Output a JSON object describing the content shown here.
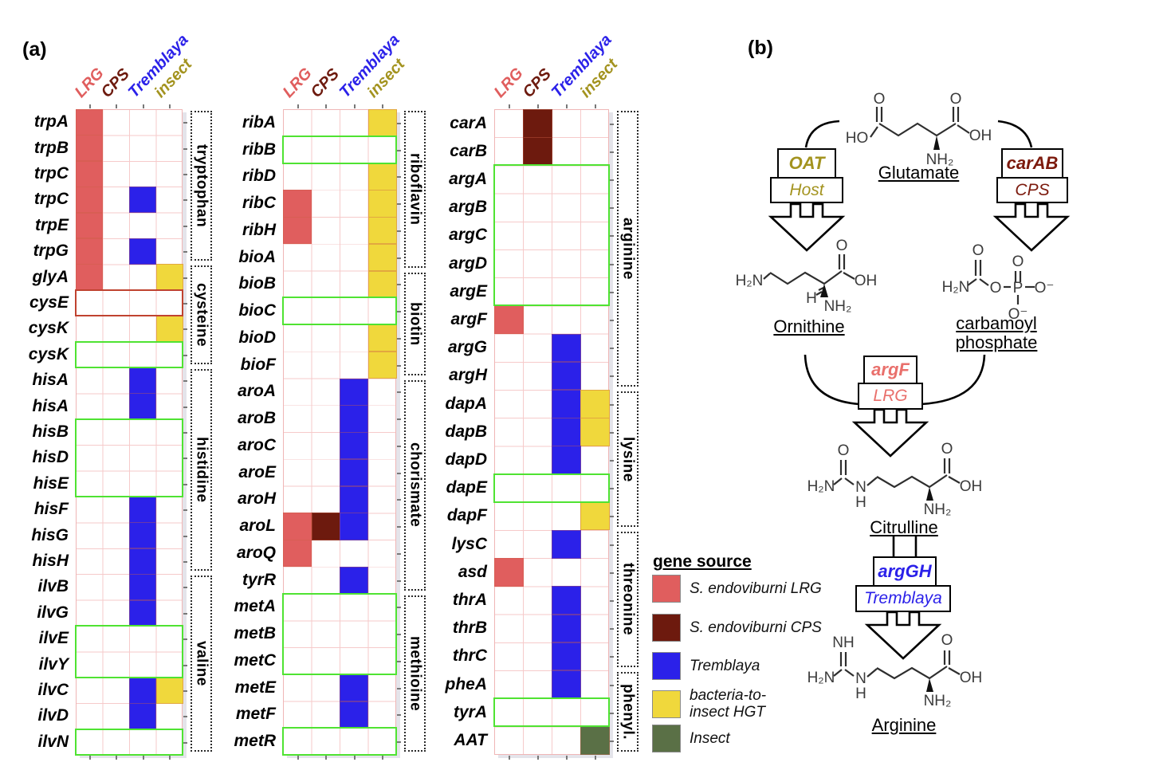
{
  "figure": {
    "panel_a_label": "(a)",
    "panel_b_label": "(b)"
  },
  "panel_a": {
    "columns": [
      {
        "label": "LRG",
        "color": "#e05e5e"
      },
      {
        "label": "CPS",
        "color": "#6d1a0e"
      },
      {
        "label": "Tremblaya",
        "color": "#2b21e9"
      },
      {
        "label": "insect",
        "color": "#a3931f"
      }
    ],
    "source_colors": {
      "LRG": "#e05e5e",
      "CPS": "#6d1a0e",
      "Tremblaya": "#2b21e9",
      "HGT": "#f0d83c",
      "Insect": "#5a7046"
    },
    "outline_colors": {
      "green": "#4fe332",
      "red": "#c04330"
    },
    "grids": [
      {
        "rows": [
          {
            "gene": "trpA",
            "cells": [
              "LRG"
            ]
          },
          {
            "gene": "trpB",
            "cells": [
              "LRG"
            ]
          },
          {
            "gene": "trpC",
            "cells": [
              "LRG"
            ]
          },
          {
            "gene": "trpC",
            "cells": [
              "LRG",
              "Tremblaya"
            ]
          },
          {
            "gene": "trpE",
            "cells": [
              "LRG"
            ]
          },
          {
            "gene": "trpG",
            "cells": [
              "LRG",
              "Tremblaya"
            ]
          },
          {
            "gene": "glyA",
            "cells": [
              "LRG",
              "HGT"
            ]
          },
          {
            "gene": "cysE",
            "cells": []
          },
          {
            "gene": "cysK",
            "cells": [
              "HGT"
            ]
          },
          {
            "gene": "cysK",
            "cells": []
          },
          {
            "gene": "hisA",
            "cells": [
              "Tremblaya"
            ]
          },
          {
            "gene": "hisA",
            "cells": [
              "Tremblaya"
            ]
          },
          {
            "gene": "hisB",
            "cells": []
          },
          {
            "gene": "hisD",
            "cells": []
          },
          {
            "gene": "hisE",
            "cells": []
          },
          {
            "gene": "hisF",
            "cells": [
              "Tremblaya"
            ]
          },
          {
            "gene": "hisG",
            "cells": [
              "Tremblaya"
            ]
          },
          {
            "gene": "hisH",
            "cells": [
              "Tremblaya"
            ]
          },
          {
            "gene": "ilvB",
            "cells": [
              "Tremblaya"
            ]
          },
          {
            "gene": "ilvG",
            "cells": [
              "Tremblaya"
            ]
          },
          {
            "gene": "ilvE",
            "cells": []
          },
          {
            "gene": "ilvY",
            "cells": []
          },
          {
            "gene": "ilvC",
            "cells": [
              "Tremblaya",
              "HGT"
            ]
          },
          {
            "gene": "ilvD",
            "cells": [
              "Tremblaya"
            ]
          },
          {
            "gene": "ilvN",
            "cells": []
          }
        ],
        "boxes": [
          {
            "color": "red",
            "start": 7,
            "end": 7
          },
          {
            "color": "green",
            "start": 9,
            "end": 9
          },
          {
            "color": "green",
            "start": 12,
            "end": 14
          },
          {
            "color": "green",
            "start": 20,
            "end": 21
          },
          {
            "color": "green",
            "start": 24,
            "end": 24
          }
        ],
        "groups": [
          {
            "label": "tryptophan",
            "start": 0,
            "end": 5
          },
          {
            "label": "cysteine",
            "start": 6,
            "end": 9
          },
          {
            "label": "histidine",
            "start": 10,
            "end": 17
          },
          {
            "label": "valine",
            "start": 18,
            "end": 24
          }
        ]
      },
      {
        "rows": [
          {
            "gene": "ribA",
            "cells": [
              "HGT"
            ]
          },
          {
            "gene": "ribB",
            "cells": []
          },
          {
            "gene": "ribD",
            "cells": [
              "HGT"
            ]
          },
          {
            "gene": "ribC",
            "cells": [
              "LRG",
              "HGT"
            ]
          },
          {
            "gene": "ribH",
            "cells": [
              "LRG",
              "HGT"
            ]
          },
          {
            "gene": "bioA",
            "cells": [
              "HGT"
            ]
          },
          {
            "gene": "bioB",
            "cells": [
              "HGT"
            ]
          },
          {
            "gene": "bioC",
            "cells": []
          },
          {
            "gene": "bioD",
            "cells": [
              "HGT"
            ]
          },
          {
            "gene": "bioF",
            "cells": [
              "HGT"
            ]
          },
          {
            "gene": "aroA",
            "cells": [
              "Tremblaya"
            ]
          },
          {
            "gene": "aroB",
            "cells": [
              "Tremblaya"
            ]
          },
          {
            "gene": "aroC",
            "cells": [
              "Tremblaya"
            ]
          },
          {
            "gene": "aroE",
            "cells": [
              "Tremblaya"
            ]
          },
          {
            "gene": "aroH",
            "cells": [
              "Tremblaya"
            ]
          },
          {
            "gene": "aroL",
            "cells": [
              "LRG",
              "CPS",
              "Tremblaya"
            ]
          },
          {
            "gene": "aroQ",
            "cells": [
              "LRG"
            ]
          },
          {
            "gene": "tyrR",
            "cells": [
              "Tremblaya"
            ]
          },
          {
            "gene": "metA",
            "cells": []
          },
          {
            "gene": "metB",
            "cells": []
          },
          {
            "gene": "metC",
            "cells": []
          },
          {
            "gene": "metE",
            "cells": [
              "Tremblaya"
            ]
          },
          {
            "gene": "metF",
            "cells": [
              "Tremblaya"
            ]
          },
          {
            "gene": "metR",
            "cells": []
          }
        ],
        "boxes": [
          {
            "color": "green",
            "start": 1,
            "end": 1
          },
          {
            "color": "green",
            "start": 7,
            "end": 7
          },
          {
            "color": "green",
            "start": 18,
            "end": 20
          },
          {
            "color": "green",
            "start": 23,
            "end": 23
          }
        ],
        "groups": [
          {
            "label": "riboflavin",
            "start": 0,
            "end": 5
          },
          {
            "label": "biotin",
            "start": 6,
            "end": 9
          },
          {
            "label": "chorismate",
            "start": 10,
            "end": 17
          },
          {
            "label": "methioine",
            "start": 18,
            "end": 23
          }
        ]
      },
      {
        "rows": [
          {
            "gene": "carA",
            "cells": [
              "CPS"
            ]
          },
          {
            "gene": "carB",
            "cells": [
              "CPS"
            ]
          },
          {
            "gene": "argA",
            "cells": []
          },
          {
            "gene": "argB",
            "cells": []
          },
          {
            "gene": "argC",
            "cells": []
          },
          {
            "gene": "argD",
            "cells": []
          },
          {
            "gene": "argE",
            "cells": []
          },
          {
            "gene": "argF",
            "cells": [
              "LRG"
            ]
          },
          {
            "gene": "argG",
            "cells": [
              "Tremblaya"
            ]
          },
          {
            "gene": "argH",
            "cells": [
              "Tremblaya"
            ]
          },
          {
            "gene": "dapA",
            "cells": [
              "Tremblaya",
              "HGT"
            ]
          },
          {
            "gene": "dapB",
            "cells": [
              "Tremblaya",
              "HGT"
            ]
          },
          {
            "gene": "dapD",
            "cells": [
              "Tremblaya"
            ]
          },
          {
            "gene": "dapE",
            "cells": []
          },
          {
            "gene": "dapF",
            "cells": [
              "HGT"
            ]
          },
          {
            "gene": "lysC",
            "cells": [
              "Tremblaya"
            ]
          },
          {
            "gene": "asd",
            "cells": [
              "LRG"
            ]
          },
          {
            "gene": "thrA",
            "cells": [
              "Tremblaya"
            ]
          },
          {
            "gene": "thrB",
            "cells": [
              "Tremblaya"
            ]
          },
          {
            "gene": "thrC",
            "cells": [
              "Tremblaya"
            ]
          },
          {
            "gene": "pheA",
            "cells": [
              "Tremblaya"
            ]
          },
          {
            "gene": "tyrA",
            "cells": []
          },
          {
            "gene": "AAT",
            "cells": [
              "Insect"
            ]
          }
        ],
        "boxes": [
          {
            "color": "green",
            "start": 2,
            "end": 6
          },
          {
            "color": "green",
            "start": 13,
            "end": 13
          },
          {
            "color": "green",
            "start": 21,
            "end": 21
          }
        ],
        "groups": [
          {
            "label": "arginine",
            "start": 0,
            "end": 9
          },
          {
            "label": "lysine",
            "start": 10,
            "end": 14
          },
          {
            "label": "threonine",
            "start": 15,
            "end": 19
          },
          {
            "label": "phenyl.",
            "start": 20,
            "end": 22
          }
        ]
      }
    ]
  },
  "legend": {
    "title": "gene source",
    "items": [
      {
        "label": "S. endoviburni LRG",
        "color": "#e05e5e"
      },
      {
        "label": "S. endoviburni CPS",
        "color": "#6d1a0e"
      },
      {
        "label": "Tremblaya",
        "color": "#2b21e9"
      },
      {
        "label": "bacteria-to-\ninsect HGT",
        "color": "#f0d83c"
      },
      {
        "label": "Insect",
        "color": "#5a7046"
      }
    ]
  },
  "panel_b": {
    "molecules": {
      "glutamate": {
        "name": "Glutamate"
      },
      "ornithine": {
        "name": "Ornithine"
      },
      "carbamoyl_phosphate": {
        "name": "carbamoyl\nphosphate"
      },
      "citrulline": {
        "name": "Citrulline"
      },
      "arginine": {
        "name": "Arginine"
      }
    },
    "enzymes": {
      "oat": {
        "gene": "OAT",
        "source": "Host",
        "color": "#a3931f"
      },
      "carab": {
        "gene": "carAB",
        "source": "CPS",
        "color": "#7c1a0d"
      },
      "argf": {
        "gene": "argF",
        "source": "LRG",
        "color": "#e9706c"
      },
      "arggh": {
        "gene": "argGH",
        "source": "Tremblaya",
        "color": "#2b21e9"
      }
    },
    "atoms": {
      "glutamate": [
        "O",
        "HO",
        "O",
        "OH",
        "NH₂"
      ],
      "ornithine": [
        "H₂N",
        "H",
        "NH₂",
        "O",
        "OH"
      ],
      "carbamoyl_phosphate": [
        "H₂N",
        "O",
        "O",
        "P",
        "O",
        "O⁻",
        "O⁻"
      ],
      "citrulline": [
        "H₂N",
        "O",
        "N",
        "H",
        "NH₂",
        "O",
        "OH"
      ],
      "arginine": [
        "H₂N",
        "NH",
        "N",
        "H",
        "NH₂",
        "O",
        "OH"
      ]
    }
  }
}
